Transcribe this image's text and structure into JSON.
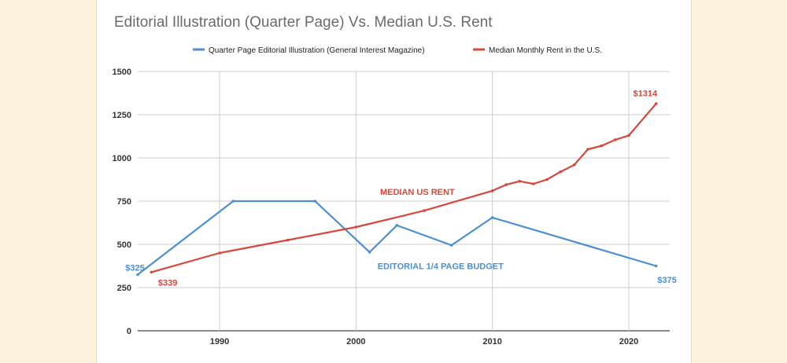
{
  "chart_data": {
    "type": "line",
    "title": "Editorial Illustration (Quarter Page) Vs. Median U.S. Rent",
    "xlabel": "",
    "ylabel": "",
    "xlim": [
      1984,
      2023
    ],
    "ylim": [
      0,
      1500
    ],
    "x_ticks": [
      1990,
      2000,
      2010,
      2020
    ],
    "y_ticks": [
      0,
      250,
      500,
      750,
      1000,
      1250,
      1500
    ],
    "grid": true,
    "legend_position": "top-center",
    "series": [
      {
        "name": "Quarter Page Editorial Illustration (General Interest Magazine)",
        "color": "#4a8fd4",
        "x": [
          1984,
          1991,
          1997,
          2001,
          2003,
          2007,
          2010,
          2022
        ],
        "y": [
          325,
          750,
          750,
          455,
          610,
          495,
          655,
          375
        ]
      },
      {
        "name": "Median Monthly Rent in the U.S.",
        "color": "#d9473b",
        "x": [
          1985,
          1990,
          1995,
          2000,
          2005,
          2010,
          2011,
          2012,
          2013,
          2014,
          2015,
          2016,
          2017,
          2018,
          2019,
          2020,
          2022
        ],
        "y": [
          339,
          450,
          525,
          600,
          695,
          810,
          845,
          865,
          850,
          875,
          920,
          960,
          1050,
          1070,
          1105,
          1130,
          1314
        ]
      }
    ],
    "annotations": [
      {
        "text": "MEDIAN US RENT",
        "color": "#d9473b",
        "x": 2004.5,
        "y": 805
      },
      {
        "text": "EDITORIAL 1/4 PAGE BUDGET",
        "color": "#4a8fd4",
        "x": 2006.2,
        "y": 375
      },
      {
        "text": "$325",
        "color": "#4a8fd4",
        "x": 1983.8,
        "y": 365
      },
      {
        "text": "$339",
        "color": "#d9473b",
        "x": 1986.2,
        "y": 280
      },
      {
        "text": "$1314",
        "color": "#d9473b",
        "x": 2021.2,
        "y": 1375
      },
      {
        "text": "$375",
        "color": "#4a8fd4",
        "x": 2022.8,
        "y": 295
      }
    ]
  }
}
